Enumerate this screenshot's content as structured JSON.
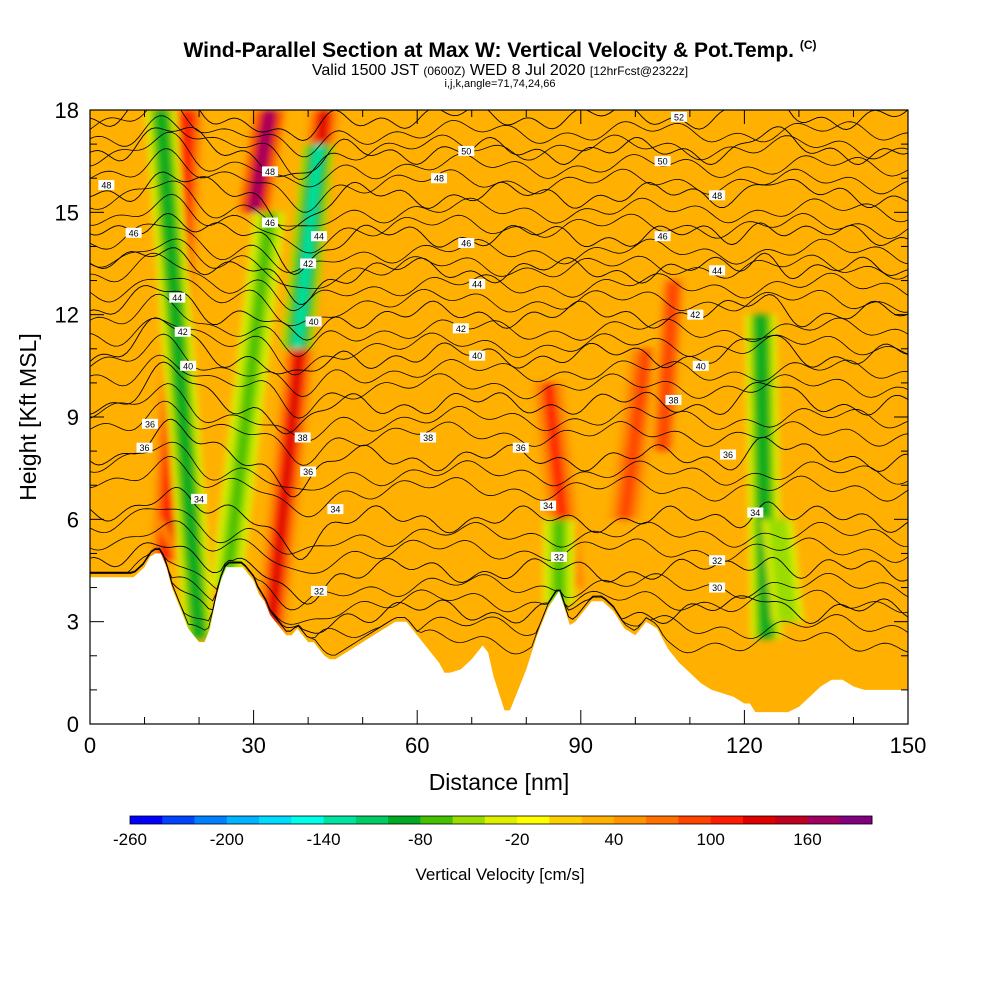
{
  "header": {
    "title": "Wind-Parallel Section at Max W: Vertical Velocity & Pot.Temp.",
    "title_mark": "(C)",
    "subtitle_valid": "Valid 1500 JST",
    "subtitle_zulu": "(0600Z)",
    "subtitle_date": "WED 8 Jul 2020",
    "subtitle_fcst": "[12hrFcst@2322z]",
    "indices": "i,j,k,angle=71,74,24,66"
  },
  "chart_data": {
    "type": "heatmap",
    "xlabel": "Distance [nm]",
    "ylabel": "Height [Kft MSL]",
    "xlim": [
      0,
      150
    ],
    "ylim": [
      0,
      18
    ],
    "x_ticks": [
      "0",
      "30",
      "60",
      "90",
      "120",
      "150"
    ],
    "y_ticks": [
      "0",
      "3",
      "6",
      "9",
      "12",
      "15",
      "18"
    ],
    "colorbar": {
      "label": "Vertical Velocity [cm/s]",
      "min": -260,
      "max": 180,
      "step": 20,
      "tick_labels": [
        "-260",
        "-200",
        "-140",
        "-80",
        "-20",
        "40",
        "100",
        "160"
      ],
      "colors": [
        "#0000ff",
        "#0044ff",
        "#0080ff",
        "#00b4ff",
        "#00dcff",
        "#00ffe8",
        "#00e4a0",
        "#00cc66",
        "#00aa22",
        "#44c000",
        "#99dd00",
        "#ddf000",
        "#ffff00",
        "#ffd000",
        "#ffb000",
        "#ff9400",
        "#ff7000",
        "#ff4400",
        "#ff1c00",
        "#e00000",
        "#c00020",
        "#a00060",
        "#800080"
      ]
    },
    "background_w": 20,
    "updraft_bands": [
      {
        "x": [
          14,
          18
        ],
        "w": 110,
        "z": [
          4.8,
          18
        ]
      },
      {
        "x": [
          33,
          43
        ],
        "w": 120,
        "z": [
          2.5,
          18
        ]
      },
      {
        "x": [
          88,
          84
        ],
        "w": 100,
        "z": [
          4,
          10
        ]
      },
      {
        "x": [
          98,
          102
        ],
        "w": 90,
        "z": [
          6,
          11
        ]
      },
      {
        "x": [
          105,
          107
        ],
        "w": 80,
        "z": [
          8,
          13
        ]
      },
      {
        "x": [
          30,
          33
        ],
        "w": 170,
        "z": [
          15,
          18
        ]
      },
      {
        "x": [
          21,
          15
        ],
        "w": 120,
        "z": [
          4,
          6
        ]
      }
    ],
    "downdraft_bands": [
      {
        "x": [
          20,
          13
        ],
        "w": -90,
        "z": [
          2.5,
          18
        ]
      },
      {
        "x": [
          38,
          42
        ],
        "w": -130,
        "z": [
          11,
          17
        ]
      },
      {
        "x": [
          25,
          33
        ],
        "w": -80,
        "z": [
          4,
          15
        ]
      },
      {
        "x": [
          86,
          86
        ],
        "w": -70,
        "z": [
          3.5,
          6
        ]
      },
      {
        "x": [
          124,
          123
        ],
        "w": -90,
        "z": [
          2.5,
          12
        ]
      },
      {
        "x": [
          128,
          126
        ],
        "w": -60,
        "z": [
          3,
          6
        ]
      }
    ],
    "terrain": {
      "x": [
        0,
        8,
        10,
        11,
        12,
        13,
        14,
        15,
        16,
        17,
        18,
        19,
        20,
        21,
        22,
        23,
        24,
        25,
        26,
        28,
        30,
        31,
        32,
        33,
        34,
        35,
        36,
        37,
        38,
        39,
        40,
        41,
        42,
        43,
        44,
        45,
        46,
        48,
        50,
        52,
        54,
        56,
        58,
        60,
        62,
        64,
        65,
        66,
        68,
        70,
        72,
        73,
        74,
        75,
        76,
        77,
        78,
        80,
        82,
        84,
        86,
        87,
        88,
        89,
        90,
        91,
        92,
        94,
        96,
        98,
        100,
        102,
        104,
        106,
        108,
        110,
        112,
        114,
        116,
        118,
        120,
        121,
        122,
        124,
        126,
        128,
        130,
        132,
        134,
        136,
        138,
        140,
        142,
        144,
        146,
        150
      ],
      "height": [
        4.3,
        4.3,
        4.6,
        4.9,
        5.0,
        5.0,
        4.6,
        4.0,
        3.6,
        3.2,
        2.8,
        2.6,
        2.4,
        2.4,
        2.8,
        3.6,
        4.2,
        4.6,
        4.6,
        4.6,
        4.2,
        3.8,
        3.6,
        3.2,
        3.0,
        2.8,
        2.6,
        2.6,
        2.8,
        2.6,
        2.4,
        2.4,
        2.2,
        2.0,
        1.9,
        1.9,
        2.0,
        2.2,
        2.4,
        2.6,
        2.8,
        3.0,
        3.0,
        2.6,
        2.2,
        1.8,
        1.5,
        1.5,
        1.6,
        1.9,
        2.3,
        2.1,
        1.4,
        0.9,
        0.4,
        0.4,
        0.8,
        1.6,
        2.6,
        3.4,
        3.9,
        3.4,
        2.9,
        3.0,
        3.2,
        3.4,
        3.6,
        3.6,
        3.3,
        2.8,
        2.6,
        3.0,
        2.8,
        2.2,
        1.8,
        1.5,
        1.2,
        1.0,
        0.9,
        0.8,
        0.6,
        0.6,
        0.35,
        0.35,
        0.35,
        0.35,
        0.5,
        0.8,
        1.1,
        1.3,
        1.3,
        1.1,
        1.0,
        1.0,
        1.0,
        1.0
      ]
    },
    "isentropes": {
      "levels": [
        30,
        32,
        34,
        36,
        38,
        40,
        42,
        44,
        46,
        48,
        50,
        52
      ],
      "base_height": [
        3.3,
        4.5,
        6.0,
        7.8,
        9.4,
        10.8,
        12.0,
        13.3,
        14.3,
        15.5,
        16.8,
        17.8
      ],
      "labels": [
        {
          "text": "30",
          "x": 115,
          "z": 4.0
        },
        {
          "text": "32",
          "x": 115,
          "z": 4.8
        },
        {
          "text": "32",
          "x": 86,
          "z": 4.9
        },
        {
          "text": "32",
          "x": 42,
          "z": 3.9
        },
        {
          "text": "34",
          "x": 20,
          "z": 6.6
        },
        {
          "text": "34",
          "x": 45,
          "z": 6.3
        },
        {
          "text": "34",
          "x": 84,
          "z": 6.4
        },
        {
          "text": "34",
          "x": 122,
          "z": 6.2
        },
        {
          "text": "36",
          "x": 10,
          "z": 8.1
        },
        {
          "text": "36",
          "x": 40,
          "z": 7.4
        },
        {
          "text": "36",
          "x": 79,
          "z": 8.1
        },
        {
          "text": "36",
          "x": 117,
          "z": 7.9
        },
        {
          "text": "36",
          "x": 11,
          "z": 8.8
        },
        {
          "text": "38",
          "x": 39,
          "z": 8.4
        },
        {
          "text": "38",
          "x": 62,
          "z": 8.4
        },
        {
          "text": "38",
          "x": 107,
          "z": 9.5
        },
        {
          "text": "40",
          "x": 18,
          "z": 10.5
        },
        {
          "text": "40",
          "x": 41,
          "z": 11.8
        },
        {
          "text": "40",
          "x": 71,
          "z": 10.8
        },
        {
          "text": "40",
          "x": 112,
          "z": 10.5
        },
        {
          "text": "42",
          "x": 17,
          "z": 11.5
        },
        {
          "text": "42",
          "x": 40,
          "z": 13.5
        },
        {
          "text": "42",
          "x": 68,
          "z": 11.6
        },
        {
          "text": "42",
          "x": 111,
          "z": 12.0
        },
        {
          "text": "44",
          "x": 16,
          "z": 12.5
        },
        {
          "text": "44",
          "x": 42,
          "z": 14.3
        },
        {
          "text": "44",
          "x": 71,
          "z": 12.9
        },
        {
          "text": "44",
          "x": 115,
          "z": 13.3
        },
        {
          "text": "46",
          "x": 8,
          "z": 14.4
        },
        {
          "text": "46",
          "x": 33,
          "z": 14.7
        },
        {
          "text": "46",
          "x": 69,
          "z": 14.1
        },
        {
          "text": "46",
          "x": 105,
          "z": 14.3
        },
        {
          "text": "48",
          "x": 3,
          "z": 15.8
        },
        {
          "text": "48",
          "x": 33,
          "z": 16.2
        },
        {
          "text": "48",
          "x": 64,
          "z": 16.0
        },
        {
          "text": "48",
          "x": 115,
          "z": 15.5
        },
        {
          "text": "50",
          "x": 69,
          "z": 16.8
        },
        {
          "text": "50",
          "x": 105,
          "z": 16.5
        },
        {
          "text": "52",
          "x": 108,
          "z": 17.8
        }
      ]
    }
  }
}
